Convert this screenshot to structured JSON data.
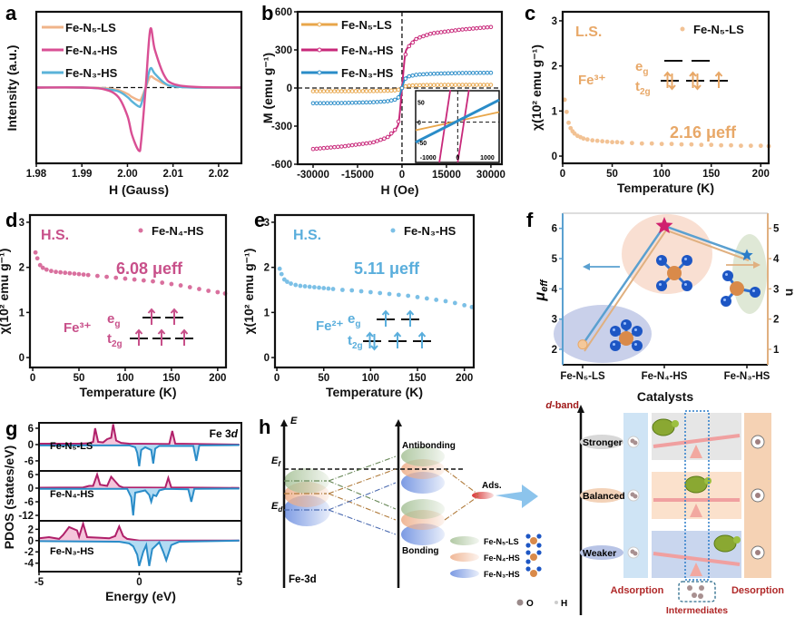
{
  "panel_labels": {
    "a": "a",
    "b": "b",
    "c": "c",
    "d": "d",
    "e": "e",
    "f": "f",
    "g": "g",
    "h": "h"
  },
  "colors": {
    "ls": "#f0b07a",
    "hs4": "#d8428c",
    "hs3": "#4ea9d8",
    "ls_chi": "#f2c294",
    "hs4_chi": "#d9709e",
    "hs3_chi": "#7cc0e6",
    "ls_text": "#e8a868",
    "hs4_text": "#c8508a",
    "hs3_text": "#5aaedc",
    "pdos_up": "#b0206a",
    "pdos_down": "#2a8cc8"
  },
  "chart_data": [
    {
      "id": "a",
      "type": "line",
      "xlabel": "H (Gauss)",
      "ylabel": "Intensity (a.u.)",
      "xlim": [
        1.98,
        2.025
      ],
      "xticks": [
        "1.98",
        "1.99",
        "2.00",
        "2.01",
        "2.02"
      ],
      "yticks": [],
      "zero_line": "dashed",
      "legend": "top-left",
      "x": [
        1.98,
        1.99,
        1.995,
        1.998,
        2.0,
        2.001,
        2.0025,
        2.003,
        2.004,
        2.005,
        2.006,
        2.008,
        2.01,
        2.015,
        2.025
      ],
      "series": [
        {
          "name": "Fe-N₅-LS",
          "color": "#f0b48a",
          "values": [
            0,
            0,
            -0.01,
            -0.04,
            -0.1,
            -0.15,
            -0.2,
            -0.18,
            0,
            0.17,
            0.14,
            0.06,
            0.02,
            0,
            0
          ]
        },
        {
          "name": "Fe-N₄-HS",
          "color": "#d94f94",
          "values": [
            0,
            0,
            -0.03,
            -0.15,
            -0.45,
            -0.75,
            -1.0,
            -0.85,
            0,
            0.92,
            0.6,
            0.2,
            0.06,
            0.01,
            0
          ]
        },
        {
          "name": "Fe-N₃-HS",
          "color": "#5ab3d9",
          "values": [
            0,
            0,
            -0.02,
            -0.06,
            -0.15,
            -0.22,
            -0.3,
            -0.27,
            0,
            0.3,
            0.22,
            0.08,
            0.02,
            0,
            0
          ]
        }
      ]
    },
    {
      "id": "b",
      "type": "line",
      "xlabel": "H (Oe)",
      "ylabel": "M (emu g⁻¹)",
      "xticks": [
        "-30000",
        "-15000",
        "0",
        "15000",
        "30000"
      ],
      "yticks": [
        "600",
        "300",
        "0",
        "-300",
        "-600"
      ],
      "ylim": [
        -600,
        600
      ],
      "zero_line": "dashed",
      "legend": "top-left",
      "x": [
        -30000,
        -20000,
        -10000,
        -5000,
        -2000,
        -1000,
        0,
        1000,
        2000,
        5000,
        10000,
        20000,
        30000
      ],
      "series": [
        {
          "name": "Fe-N₅-LS",
          "color": "#e8a64a",
          "values": [
            -25,
            -25,
            -24,
            -22,
            -18,
            -12,
            0,
            12,
            18,
            22,
            24,
            25,
            25
          ]
        },
        {
          "name": "Fe-N₄-HS",
          "color": "#c8287a",
          "values": [
            -480,
            -460,
            -430,
            -390,
            -320,
            -250,
            0,
            250,
            320,
            390,
            430,
            460,
            480
          ]
        },
        {
          "name": "Fe-N₃-HS",
          "color": "#2a8cc8",
          "values": [
            -120,
            -118,
            -112,
            -105,
            -90,
            -70,
            0,
            70,
            90,
            105,
            112,
            118,
            120
          ]
        }
      ],
      "inset": {
        "xticks": [
          "-1000",
          "0",
          "1000"
        ],
        "yticks": [
          "50",
          "0",
          "-50"
        ],
        "series": [
          {
            "name": "Fe-N₅-LS",
            "points": [
              [
                -1420,
                -20
              ],
              [
                1400,
                25
              ]
            ]
          },
          {
            "name": "Fe-N₄-HS",
            "points": [
              [
                -620,
                -100
              ],
              [
                -250,
                80
              ]
            ]
          },
          {
            "name": "Fe-N₄-HS",
            "points": [
              [
                0,
                -100
              ],
              [
                380,
                80
              ]
            ]
          },
          {
            "name": "Fe-N₃-HS",
            "points": [
              [
                -1420,
                -50
              ],
              [
                1400,
                55
              ]
            ]
          }
        ]
      }
    },
    {
      "id": "c",
      "type": "scatter",
      "xlabel": "Temperature (K)",
      "ylabel": "χ(10² emu g⁻¹)",
      "xticks": [
        "0",
        "50",
        "100",
        "150",
        "200"
      ],
      "yticks": [
        "0",
        "1",
        "2",
        "3"
      ],
      "legend": "top-right",
      "series": [
        {
          "name": "Fe-N₅-LS",
          "x": [
            2,
            4,
            6,
            8,
            10,
            12,
            15,
            18,
            21,
            25,
            30,
            35,
            40,
            45,
            50,
            55,
            60,
            70,
            80,
            90,
            100,
            110,
            120,
            130,
            140,
            150,
            160,
            170,
            180,
            190,
            200,
            208
          ],
          "values": [
            1.25,
            0.98,
            0.74,
            0.62,
            0.55,
            0.5,
            0.45,
            0.42,
            0.39,
            0.37,
            0.35,
            0.34,
            0.33,
            0.32,
            0.31,
            0.31,
            0.3,
            0.29,
            0.28,
            0.28,
            0.27,
            0.27,
            0.26,
            0.26,
            0.25,
            0.25,
            0.24,
            0.24,
            0.23,
            0.23,
            0.23,
            0.22
          ]
        }
      ],
      "annotations": {
        "state": "L.S.",
        "ion": "Fe³⁺",
        "moment": "2.16 μeff"
      }
    },
    {
      "id": "d",
      "type": "scatter",
      "xlabel": "Temperature (K)",
      "ylabel": "χ(10² emu g⁻¹)",
      "xticks": [
        "0",
        "50",
        "100",
        "150",
        "200"
      ],
      "yticks": [
        "0",
        "1",
        "2",
        "3"
      ],
      "legend": "top-right",
      "series": [
        {
          "name": "Fe-N₄-HS",
          "x": [
            3,
            5,
            8,
            11,
            15,
            20,
            25,
            30,
            35,
            40,
            45,
            50,
            55,
            60,
            70,
            80,
            90,
            100,
            110,
            120,
            130,
            140,
            150,
            160,
            170,
            180,
            190,
            200,
            208
          ],
          "values": [
            2.33,
            2.2,
            2.05,
            1.99,
            1.95,
            1.92,
            1.9,
            1.89,
            1.88,
            1.87,
            1.86,
            1.85,
            1.84,
            1.83,
            1.81,
            1.79,
            1.77,
            1.75,
            1.73,
            1.71,
            1.69,
            1.66,
            1.63,
            1.6,
            1.56,
            1.52,
            1.48,
            1.45,
            1.42
          ]
        }
      ],
      "annotations": {
        "state": "H.S.",
        "ion": "Fe³⁺",
        "moment": "6.08 μeff"
      }
    },
    {
      "id": "e",
      "type": "scatter",
      "xlabel": "Temperature (K)",
      "ylabel": "χ(10² emu g⁻¹)",
      "xticks": [
        "0",
        "50",
        "100",
        "150",
        "200"
      ],
      "yticks": [
        "0",
        "1",
        "2",
        "3"
      ],
      "legend": "top-right",
      "series": [
        {
          "name": "Fe-N₃-HS",
          "x": [
            3,
            5,
            8,
            11,
            15,
            20,
            25,
            30,
            35,
            40,
            45,
            50,
            55,
            60,
            70,
            80,
            90,
            100,
            110,
            120,
            130,
            140,
            150,
            160,
            170,
            180,
            190,
            200,
            208
          ],
          "values": [
            1.97,
            1.85,
            1.73,
            1.68,
            1.64,
            1.61,
            1.59,
            1.58,
            1.57,
            1.56,
            1.55,
            1.54,
            1.53,
            1.52,
            1.5,
            1.49,
            1.47,
            1.45,
            1.43,
            1.41,
            1.39,
            1.37,
            1.34,
            1.31,
            1.28,
            1.25,
            1.21,
            1.16,
            1.12
          ]
        }
      ],
      "annotations": {
        "state": "H.S.",
        "ion": "Fe²⁺",
        "moment": "5.11 μeff"
      }
    },
    {
      "id": "f",
      "type": "line",
      "xlabel": "Catalysts",
      "ylabel_left": {
        "mu": "μ",
        "sub": "eff"
      },
      "ylabel_right": "n",
      "categories": [
        "Fe-N₅-LS",
        "Fe-N₄-HS",
        "Fe-N₃-HS"
      ],
      "yticks_left": [
        "2",
        "3",
        "4",
        "5",
        "6"
      ],
      "yticks_right": [
        "1",
        "2",
        "3",
        "4",
        "5"
      ],
      "left_color": "#5aa0d0",
      "right_color": "#e0b080",
      "series": [
        {
          "name": "μeff",
          "axis": "left",
          "values": [
            2.16,
            6.08,
            5.11
          ]
        },
        {
          "name": "n",
          "axis": "right",
          "values": [
            1,
            5,
            4
          ]
        }
      ]
    },
    {
      "id": "g",
      "type": "area",
      "xlabel": "Energy (eV)",
      "ylabel": "PDOS (states/eV)",
      "annotation": {
        "main": "Fe 3",
        "italic": "d"
      },
      "xticks": [
        "-5",
        "0",
        "5"
      ],
      "subplots": [
        {
          "label": "Fe-N₅-LS",
          "yticks": [
            "6",
            "0",
            "-6"
          ],
          "up": [
            [
              -5,
              0.3
            ],
            [
              -3,
              0.3
            ],
            [
              -2.5,
              0.5
            ],
            [
              -2.3,
              1
            ],
            [
              -2.2,
              6
            ],
            [
              -2.05,
              1
            ],
            [
              -1.8,
              0.8
            ],
            [
              -1.6,
              2
            ],
            [
              -1.4,
              2.5
            ],
            [
              -1.3,
              7.5
            ],
            [
              -1.15,
              1.5
            ],
            [
              -0.9,
              0.6
            ],
            [
              -0.5,
              0.3
            ],
            [
              1.5,
              0.2
            ],
            [
              1.65,
              5
            ],
            [
              1.8,
              0.3
            ],
            [
              5,
              0
            ]
          ],
          "down": [
            [
              -5,
              -0.3
            ],
            [
              -0.5,
              -0.3
            ],
            [
              -0.2,
              -1
            ],
            [
              -0.1,
              -3
            ],
            [
              0,
              -8
            ],
            [
              0.1,
              -2
            ],
            [
              0.3,
              -1
            ],
            [
              0.45,
              -1.5
            ],
            [
              0.6,
              -2
            ],
            [
              0.7,
              -7
            ],
            [
              0.8,
              -1.5
            ],
            [
              1,
              -0.5
            ],
            [
              2.7,
              -0.5
            ],
            [
              2.85,
              -6
            ],
            [
              3,
              -0.3
            ],
            [
              5,
              -0.2
            ]
          ]
        },
        {
          "label": "Fe-N₄-HS",
          "yticks": [
            "6",
            "0",
            "-6",
            "-12"
          ],
          "up": [
            [
              -5,
              0.2
            ],
            [
              -2.8,
              0.3
            ],
            [
              -2.5,
              1
            ],
            [
              -2.3,
              1
            ],
            [
              -2.1,
              6
            ],
            [
              -1.95,
              1.5
            ],
            [
              -1.6,
              1
            ],
            [
              -1.4,
              5
            ],
            [
              -1.2,
              3
            ],
            [
              -1,
              1
            ],
            [
              -0.8,
              0.3
            ],
            [
              1.3,
              0.2
            ],
            [
              1.45,
              4.5
            ],
            [
              1.6,
              0.3
            ],
            [
              5,
              0.1
            ]
          ],
          "down": [
            [
              -5,
              -0.3
            ],
            [
              -0.6,
              -0.3
            ],
            [
              -0.4,
              -4
            ],
            [
              -0.3,
              -12
            ],
            [
              -0.2,
              -2
            ],
            [
              0.3,
              -1
            ],
            [
              0.5,
              -3
            ],
            [
              0.6,
              -6
            ],
            [
              0.7,
              -3
            ],
            [
              0.85,
              -3.5
            ],
            [
              1,
              -1
            ],
            [
              1.3,
              -0.3
            ],
            [
              2.45,
              -0.5
            ],
            [
              2.6,
              -6
            ],
            [
              2.75,
              -0.3
            ],
            [
              5,
              -0.2
            ]
          ]
        },
        {
          "label": "Fe-N₃-HS",
          "yticks": [
            "2",
            "0",
            "-2",
            "-4"
          ],
          "up": [
            [
              -5,
              0.4
            ],
            [
              -4.5,
              0.6
            ],
            [
              -4,
              0.3
            ],
            [
              -3.8,
              1
            ],
            [
              -3.5,
              2.4
            ],
            [
              -3.1,
              1.8
            ],
            [
              -3,
              0.7
            ],
            [
              -2.8,
              3
            ],
            [
              -2.6,
              0.6
            ],
            [
              -2,
              0.5
            ],
            [
              -1.5,
              0.4
            ],
            [
              -1.2,
              0.8
            ],
            [
              -1,
              2.5
            ],
            [
              -0.8,
              0.8
            ],
            [
              -0.6,
              0.3
            ],
            [
              0,
              0
            ],
            [
              5,
              0
            ]
          ],
          "down": [
            [
              -5,
              -0.1
            ],
            [
              -1,
              -0.2
            ],
            [
              -0.5,
              -0.5
            ],
            [
              -0.3,
              -1
            ],
            [
              -0.1,
              -2.5
            ],
            [
              0,
              -4.5
            ],
            [
              0.2,
              -2
            ],
            [
              0.35,
              -0.8
            ],
            [
              0.5,
              -4.5
            ],
            [
              0.65,
              -1.5
            ],
            [
              1,
              -0.3
            ],
            [
              1.2,
              -2
            ],
            [
              1.35,
              -3.5
            ],
            [
              1.6,
              -0.8
            ],
            [
              2,
              -0.2
            ],
            [
              5,
              0
            ]
          ]
        }
      ]
    }
  ],
  "orbitals": {
    "e": "e",
    "g": "g",
    "t": "t",
    "2g": "2g"
  },
  "schematic_h": {
    "axis_label": "E",
    "ef": {
      "main": "E",
      "sub": "f"
    },
    "ed": {
      "main": "E",
      "sub": "d"
    },
    "fe3d": "Fe-3d",
    "antibonding": "Antibonding",
    "bonding": "Bonding",
    "ads": "Ads.",
    "legend": [
      "Fe-N₅-LS",
      "Fe-N₄-HS",
      "Fe-N₃-HS"
    ],
    "atoms": [
      "O",
      "H"
    ]
  },
  "dband": {
    "axis_label": {
      "italic": "d",
      "rest": "-band"
    },
    "levels": [
      "Stronger",
      "Balanced",
      "Weaker"
    ],
    "adsorption": "Adsorption",
    "desorption": "Desorption",
    "intermediates": "Intermediates"
  }
}
